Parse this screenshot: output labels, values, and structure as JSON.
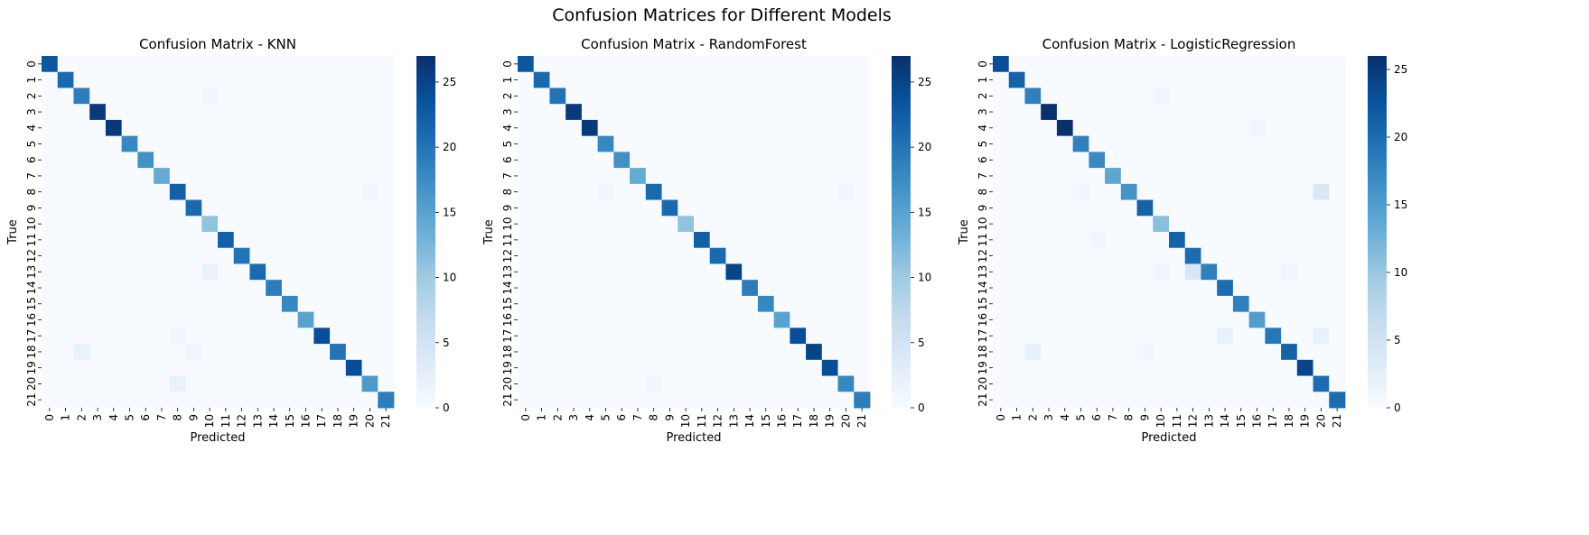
{
  "figure": {
    "suptitle": "Confusion Matrices for Different Models"
  },
  "chart_data": [
    {
      "type": "heatmap",
      "title": "Confusion Matrix - KNN",
      "xlabel": "Predicted",
      "ylabel": "True",
      "labels": [
        "0",
        "1",
        "2",
        "3",
        "4",
        "5",
        "6",
        "7",
        "8",
        "9",
        "10",
        "11",
        "12",
        "13",
        "14",
        "15",
        "16",
        "17",
        "18",
        "19",
        "20",
        "21"
      ],
      "diagonal": [
        23,
        21,
        19,
        26,
        26,
        18,
        17,
        14,
        22,
        21,
        11,
        22,
        20,
        21,
        19,
        18,
        15,
        24,
        20,
        24,
        16,
        19
      ],
      "off_diagonal": [
        [
          2,
          10,
          1
        ],
        [
          8,
          20,
          1
        ],
        [
          13,
          10,
          2
        ],
        [
          17,
          8,
          1
        ],
        [
          18,
          2,
          2
        ],
        [
          18,
          9,
          1
        ],
        [
          20,
          8,
          2
        ]
      ],
      "colorbar": {
        "min": 0,
        "max": 27,
        "ticks": [
          0,
          5,
          10,
          15,
          20,
          25
        ]
      }
    },
    {
      "type": "heatmap",
      "title": "Confusion Matrix - RandomForest",
      "xlabel": "Predicted",
      "ylabel": "True",
      "labels": [
        "0",
        "1",
        "2",
        "3",
        "4",
        "5",
        "6",
        "7",
        "8",
        "9",
        "10",
        "11",
        "12",
        "13",
        "14",
        "15",
        "16",
        "17",
        "18",
        "19",
        "20",
        "21"
      ],
      "diagonal": [
        23,
        21,
        20,
        26,
        26,
        18,
        17,
        14,
        21,
        21,
        11,
        22,
        21,
        25,
        19,
        18,
        15,
        24,
        25,
        24,
        18,
        19
      ],
      "off_diagonal": [
        [
          8,
          5,
          1
        ],
        [
          8,
          20,
          1
        ],
        [
          20,
          8,
          1
        ]
      ],
      "colorbar": {
        "min": 0,
        "max": 27,
        "ticks": [
          0,
          5,
          10,
          15,
          20,
          25
        ]
      }
    },
    {
      "type": "heatmap",
      "title": "Confusion Matrix - LogisticRegression",
      "xlabel": "Predicted",
      "ylabel": "True",
      "labels": [
        "0",
        "1",
        "2",
        "3",
        "4",
        "5",
        "6",
        "7",
        "8",
        "9",
        "10",
        "11",
        "12",
        "13",
        "14",
        "15",
        "16",
        "17",
        "18",
        "19",
        "20",
        "21"
      ],
      "diagonal": [
        23,
        21,
        18,
        26,
        26,
        18,
        17,
        14,
        16,
        21,
        11,
        21,
        20,
        18,
        20,
        18,
        15,
        19,
        21,
        24,
        20,
        20
      ],
      "off_diagonal": [
        [
          2,
          10,
          1
        ],
        [
          4,
          16,
          1
        ],
        [
          8,
          5,
          1
        ],
        [
          8,
          20,
          4
        ],
        [
          11,
          6,
          1
        ],
        [
          13,
          10,
          1
        ],
        [
          13,
          12,
          4
        ],
        [
          13,
          18,
          1
        ],
        [
          17,
          14,
          2
        ],
        [
          17,
          20,
          2
        ],
        [
          18,
          2,
          2
        ],
        [
          18,
          9,
          1
        ]
      ],
      "colorbar": {
        "min": 0,
        "max": 26,
        "ticks": [
          0,
          5,
          10,
          15,
          20,
          25
        ]
      }
    }
  ]
}
